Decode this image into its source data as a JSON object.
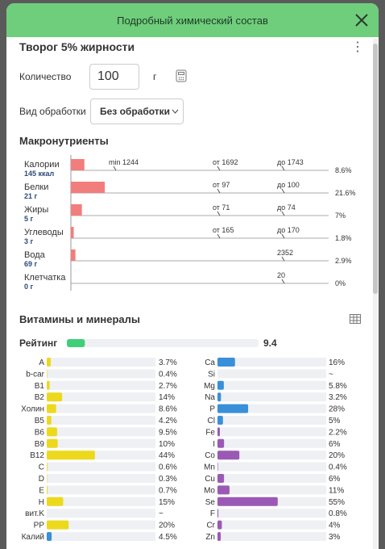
{
  "header": {
    "title": "Подробный химический состав"
  },
  "product": {
    "name": "Творог 5% жирности"
  },
  "quantity": {
    "label": "Количество",
    "value": "100",
    "unit": "г"
  },
  "processing": {
    "label": "Вид обработки",
    "value": "Без обработки"
  },
  "macros": {
    "title": "Макронутриенты",
    "color": "#f27d7d",
    "rows": [
      {
        "name": "Калории",
        "amount": "145 ккал",
        "percent": 8.6,
        "percent_label": "8.6%",
        "markers": [
          "min 1244",
          "от 1692",
          "до 1743"
        ]
      },
      {
        "name": "Белки",
        "amount": "21 г",
        "percent": 21.6,
        "percent_label": "21.6%",
        "markers": [
          "от 97",
          "до 100"
        ]
      },
      {
        "name": "Жиры",
        "amount": "5 г",
        "percent": 7,
        "percent_label": "7%",
        "markers": [
          "от 71",
          "до 74"
        ]
      },
      {
        "name": "Углеводы",
        "amount": "3 г",
        "percent": 1.8,
        "percent_label": "1.8%",
        "markers": [
          "от 165",
          "до 170"
        ]
      },
      {
        "name": "Вода",
        "amount": "69 г",
        "percent": 2.9,
        "percent_label": "2.9%",
        "markers": [
          "2352"
        ]
      },
      {
        "name": "Клетчатка",
        "amount": "0 г",
        "percent": 0,
        "percent_label": "0%",
        "markers": [
          "20"
        ]
      }
    ]
  },
  "micros": {
    "title": "Витамины и минералы",
    "rating": {
      "label": "Рейтинг",
      "value": 9.4,
      "color": "#3fcf7a"
    },
    "left": {
      "color": "#ecd91c",
      "rows": [
        {
          "name": "A",
          "value": 3.7,
          "label": "3.7%"
        },
        {
          "name": "b-car",
          "value": 0.4,
          "label": "0.4%"
        },
        {
          "name": "B1",
          "value": 2.7,
          "label": "2.7%"
        },
        {
          "name": "B2",
          "value": 14,
          "label": "14%"
        },
        {
          "name": "Холин",
          "value": 8.6,
          "label": "8.6%"
        },
        {
          "name": "B5",
          "value": 4.2,
          "label": "4.2%"
        },
        {
          "name": "B6",
          "value": 9.5,
          "label": "9.5%"
        },
        {
          "name": "B9",
          "value": 10,
          "label": "10%"
        },
        {
          "name": "B12",
          "value": 44,
          "label": "44%"
        },
        {
          "name": "C",
          "value": 0.6,
          "label": "0.6%"
        },
        {
          "name": "D",
          "value": 0.3,
          "label": "0.3%"
        },
        {
          "name": "E",
          "value": 0.7,
          "label": "0.7%"
        },
        {
          "name": "H",
          "value": 15,
          "label": "15%"
        },
        {
          "name": "вит.K",
          "value": null,
          "label": "~"
        },
        {
          "name": "PP",
          "value": 20,
          "label": "20%"
        },
        {
          "name": "Калий",
          "value": 4.5,
          "label": "4.5%",
          "color": "#3a8fd9"
        }
      ]
    },
    "right": {
      "rows": [
        {
          "name": "Ca",
          "value": 16,
          "label": "16%",
          "color": "#3a8fd9"
        },
        {
          "name": "Si",
          "value": null,
          "label": "~",
          "color": "#3a8fd9"
        },
        {
          "name": "Mg",
          "value": 5.8,
          "label": "5.8%",
          "color": "#3a8fd9"
        },
        {
          "name": "Na",
          "value": 3.2,
          "label": "3.2%",
          "color": "#3a8fd9"
        },
        {
          "name": "P",
          "value": 28,
          "label": "28%",
          "color": "#3a8fd9"
        },
        {
          "name": "Cl",
          "value": 5,
          "label": "5%",
          "color": "#3a8fd9"
        },
        {
          "name": "Fe",
          "value": 2.2,
          "label": "2.2%",
          "color": "#9b59b6"
        },
        {
          "name": "I",
          "value": 6,
          "label": "6%",
          "color": "#9b59b6"
        },
        {
          "name": "Co",
          "value": 20,
          "label": "20%",
          "color": "#9b59b6"
        },
        {
          "name": "Mn",
          "value": 0.4,
          "label": "0.4%",
          "color": "#9b59b6"
        },
        {
          "name": "Cu",
          "value": 6,
          "label": "6%",
          "color": "#9b59b6"
        },
        {
          "name": "Mo",
          "value": 11,
          "label": "11%",
          "color": "#9b59b6"
        },
        {
          "name": "Se",
          "value": 55,
          "label": "55%",
          "color": "#9b59b6"
        },
        {
          "name": "F",
          "value": 0.8,
          "label": "0.8%",
          "color": "#9b59b6"
        },
        {
          "name": "Cr",
          "value": 4,
          "label": "4%",
          "color": "#9b59b6"
        },
        {
          "name": "Zn",
          "value": 3,
          "label": "3%",
          "color": "#9b59b6"
        }
      ]
    }
  }
}
